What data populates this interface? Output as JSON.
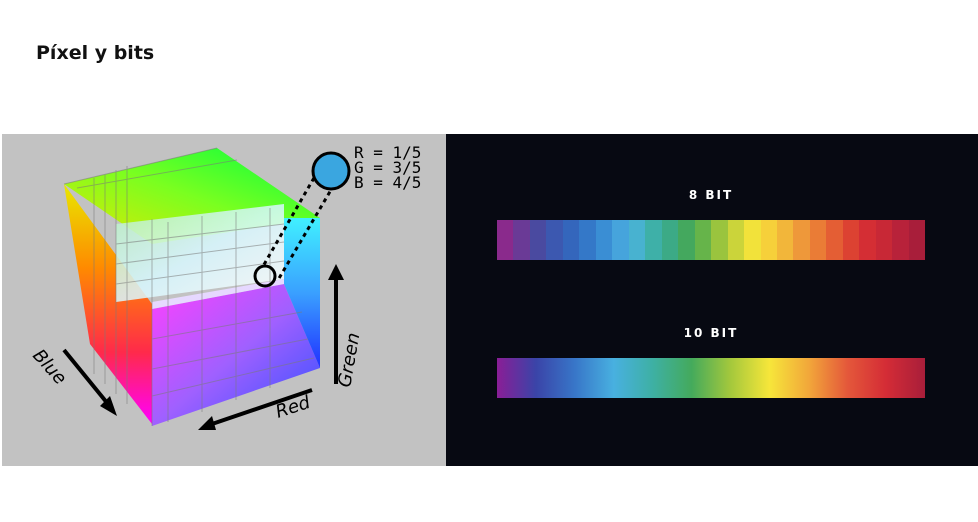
{
  "slide": {
    "title": "Píxel y bits"
  },
  "cube": {
    "axis_labels": {
      "blue": "Blue",
      "red": "Red",
      "green": "Green"
    },
    "pixel_readout": {
      "r": "R = 1/5",
      "g": "G = 3/5",
      "b": "B = 4/5"
    },
    "selected_color": "#3aa6e0"
  },
  "bars": {
    "bit8": {
      "label": "8 BIT",
      "steps": [
        "#8a2a8c",
        "#6a3a96",
        "#4a4aa0",
        "#3c58b0",
        "#3466bc",
        "#3478c8",
        "#3a8ed4",
        "#46a4dc",
        "#48b2d0",
        "#3eb0a8",
        "#3caa86",
        "#44a85e",
        "#66b44a",
        "#9ac43e",
        "#cbd43a",
        "#f2e23a",
        "#f6d03a",
        "#f2b63a",
        "#ee983a",
        "#ea7c36",
        "#e45e34",
        "#dc4232",
        "#d42e34",
        "#c82836",
        "#b8223a",
        "#a81e3a"
      ]
    },
    "bit10": {
      "label": "10 BIT",
      "gradient": [
        "#8a1e96",
        "#3a44a8",
        "#3876c8",
        "#48b0e0",
        "#3eb0a4",
        "#44aa5c",
        "#a4c83c",
        "#f6e63a",
        "#f2a83a",
        "#e4583a",
        "#d42c36",
        "#a81e3a"
      ]
    }
  }
}
